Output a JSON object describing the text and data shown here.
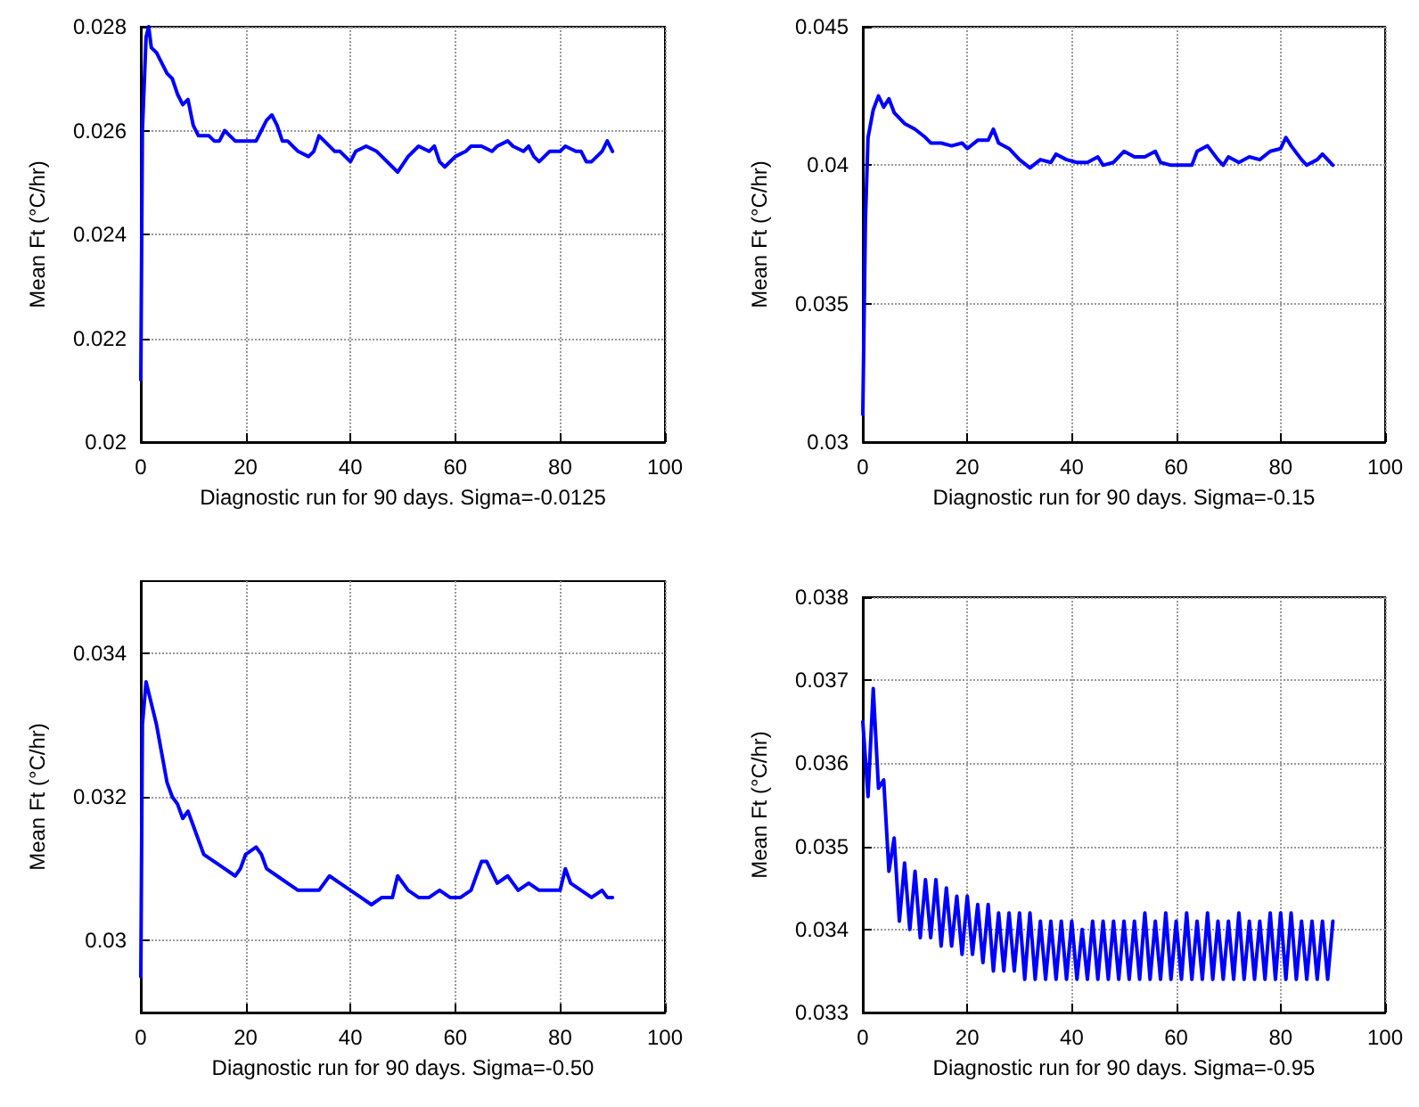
{
  "chart_data": [
    {
      "type": "line",
      "xlabel": "Diagnostic run for 90 days. Sigma=-0.0125",
      "ylabel": "Mean Ft (°C/hr)",
      "color": "#0000ff",
      "grid": true,
      "xlim": [
        0,
        100
      ],
      "xticks": [
        0,
        20,
        40,
        60,
        80,
        100
      ],
      "ylim": [
        0.02,
        0.028
      ],
      "yticks": [
        0.02,
        0.022,
        0.024,
        0.026,
        0.028
      ],
      "x": [
        0,
        0.3,
        1,
        1.5,
        2,
        3,
        5,
        6,
        7,
        8,
        9,
        10,
        11,
        13,
        14,
        15,
        16,
        17,
        18,
        20,
        22,
        23,
        24,
        25,
        26,
        27,
        28,
        30,
        32,
        33,
        34,
        35,
        37,
        38,
        40,
        41,
        43,
        45,
        46,
        48,
        49,
        51,
        53,
        55,
        56,
        57,
        58,
        60,
        62,
        63,
        65,
        67,
        68,
        70,
        71,
        73,
        74,
        75,
        76,
        77,
        78,
        80,
        81,
        83,
        84,
        85,
        86,
        87,
        88,
        89,
        90
      ],
      "values": [
        0.0212,
        0.026,
        0.0278,
        0.028,
        0.0276,
        0.0275,
        0.0271,
        0.027,
        0.0267,
        0.0265,
        0.0266,
        0.0261,
        0.0259,
        0.0259,
        0.0258,
        0.0258,
        0.026,
        0.0259,
        0.0258,
        0.0258,
        0.0258,
        0.026,
        0.0262,
        0.0263,
        0.0261,
        0.0258,
        0.0258,
        0.0256,
        0.0255,
        0.0256,
        0.0259,
        0.0258,
        0.0256,
        0.0256,
        0.0254,
        0.0256,
        0.0257,
        0.0256,
        0.0255,
        0.0253,
        0.0252,
        0.0255,
        0.0257,
        0.0256,
        0.0257,
        0.0254,
        0.0253,
        0.0255,
        0.0256,
        0.0257,
        0.0257,
        0.0256,
        0.0257,
        0.0258,
        0.0257,
        0.0256,
        0.0257,
        0.0255,
        0.0254,
        0.0255,
        0.0256,
        0.0256,
        0.0257,
        0.0256,
        0.0256,
        0.0254,
        0.0254,
        0.0255,
        0.0256,
        0.0258,
        0.0256
      ]
    },
    {
      "type": "line",
      "xlabel": "Diagnostic run for 90 days. Sigma=-0.15",
      "ylabel": "Mean Ft (°C/hr)",
      "color": "#0000ff",
      "grid": true,
      "xlim": [
        0,
        100
      ],
      "xticks": [
        0,
        20,
        40,
        60,
        80,
        100
      ],
      "ylim": [
        0.03,
        0.045
      ],
      "yticks": [
        0.03,
        0.035,
        0.04,
        0.045
      ],
      "x": [
        0,
        0.5,
        1,
        2,
        3,
        4,
        5,
        6,
        8,
        10,
        12,
        13,
        15,
        17,
        19,
        20,
        22,
        24,
        25,
        26,
        28,
        30,
        32,
        34,
        36,
        37,
        39,
        41,
        43,
        45,
        46,
        48,
        50,
        52,
        54,
        56,
        57,
        59,
        61,
        63,
        64,
        66,
        68,
        69,
        70,
        72,
        74,
        76,
        78,
        80,
        81,
        82,
        84,
        85,
        87,
        88,
        89,
        90
      ],
      "values": [
        0.031,
        0.038,
        0.041,
        0.042,
        0.0425,
        0.0421,
        0.0424,
        0.0419,
        0.0415,
        0.0413,
        0.041,
        0.0408,
        0.0408,
        0.0407,
        0.0408,
        0.0406,
        0.0409,
        0.0409,
        0.0413,
        0.0408,
        0.0406,
        0.0402,
        0.0399,
        0.0402,
        0.0401,
        0.0404,
        0.0402,
        0.0401,
        0.0401,
        0.0403,
        0.04,
        0.0401,
        0.0405,
        0.0403,
        0.0403,
        0.0405,
        0.0401,
        0.04,
        0.04,
        0.04,
        0.0405,
        0.0407,
        0.0402,
        0.04,
        0.0403,
        0.0401,
        0.0403,
        0.0402,
        0.0405,
        0.0406,
        0.041,
        0.0407,
        0.0402,
        0.04,
        0.0402,
        0.0404,
        0.0402,
        0.04
      ]
    },
    {
      "type": "line",
      "xlabel": "Diagnostic run for 90 days. Sigma=-0.50",
      "ylabel": "Mean Ft (°C/hr)",
      "color": "#0000ff",
      "grid": true,
      "xlim": [
        0,
        100
      ],
      "xticks": [
        0,
        20,
        40,
        60,
        80,
        100
      ],
      "ylim": [
        0.029,
        0.035
      ],
      "yticks": [
        0.03,
        0.032,
        0.034
      ],
      "x": [
        0,
        0.3,
        1,
        2,
        3,
        4,
        5,
        6,
        7,
        8,
        9,
        10,
        11,
        12,
        14,
        16,
        18,
        19,
        20,
        22,
        23,
        24,
        26,
        28,
        30,
        32,
        34,
        36,
        38,
        40,
        42,
        44,
        46,
        48,
        49,
        51,
        53,
        55,
        57,
        59,
        61,
        63,
        65,
        66,
        68,
        70,
        72,
        74,
        76,
        78,
        80,
        81,
        82,
        84,
        86,
        88,
        89,
        90
      ],
      "values": [
        0.0295,
        0.033,
        0.0336,
        0.0333,
        0.033,
        0.0326,
        0.0322,
        0.032,
        0.0319,
        0.0317,
        0.0318,
        0.0316,
        0.0314,
        0.0312,
        0.0311,
        0.031,
        0.0309,
        0.031,
        0.0312,
        0.0313,
        0.0312,
        0.031,
        0.0309,
        0.0308,
        0.0307,
        0.0307,
        0.0307,
        0.0309,
        0.0308,
        0.0307,
        0.0306,
        0.0305,
        0.0306,
        0.0306,
        0.0309,
        0.0307,
        0.0306,
        0.0306,
        0.0307,
        0.0306,
        0.0306,
        0.0307,
        0.0311,
        0.0311,
        0.0308,
        0.0309,
        0.0307,
        0.0308,
        0.0307,
        0.0307,
        0.0307,
        0.031,
        0.0308,
        0.0307,
        0.0306,
        0.0307,
        0.0306,
        0.0306
      ]
    },
    {
      "type": "line",
      "xlabel": "Diagnostic run for 90 days. Sigma=-0.95",
      "ylabel": "Mean Ft (°C/hr)",
      "color": "#0000ff",
      "grid": true,
      "xlim": [
        0,
        100
      ],
      "xticks": [
        0,
        20,
        40,
        60,
        80,
        100
      ],
      "ylim": [
        0.033,
        0.038
      ],
      "yticks": [
        0.033,
        0.034,
        0.035,
        0.036,
        0.037,
        0.038
      ],
      "x": [
        0,
        1,
        2,
        3,
        4,
        5,
        6,
        7,
        8,
        9,
        10,
        11,
        12,
        13,
        14,
        15,
        16,
        17,
        18,
        19,
        20,
        21,
        22,
        23,
        24,
        25,
        26,
        27,
        28,
        29,
        30,
        31,
        32,
        33,
        34,
        35,
        36,
        37,
        38,
        39,
        40,
        41,
        42,
        43,
        44,
        45,
        46,
        47,
        48,
        49,
        50,
        51,
        52,
        53,
        54,
        55,
        56,
        57,
        58,
        59,
        60,
        61,
        62,
        63,
        64,
        65,
        66,
        67,
        68,
        69,
        70,
        71,
        72,
        73,
        74,
        75,
        76,
        77,
        78,
        79,
        80,
        81,
        82,
        83,
        84,
        85,
        86,
        87,
        88,
        89,
        90
      ],
      "values": [
        0.0365,
        0.0356,
        0.0369,
        0.0357,
        0.0358,
        0.0347,
        0.0351,
        0.0341,
        0.0348,
        0.034,
        0.0347,
        0.0339,
        0.0346,
        0.0339,
        0.0346,
        0.0338,
        0.0345,
        0.0338,
        0.0344,
        0.0337,
        0.0344,
        0.0337,
        0.0343,
        0.0336,
        0.0343,
        0.0335,
        0.0342,
        0.0335,
        0.0342,
        0.0335,
        0.0342,
        0.0334,
        0.0342,
        0.0334,
        0.0341,
        0.0334,
        0.0341,
        0.0334,
        0.0341,
        0.0334,
        0.0341,
        0.0334,
        0.034,
        0.0334,
        0.0341,
        0.0334,
        0.0341,
        0.0334,
        0.0341,
        0.0334,
        0.0341,
        0.0334,
        0.0341,
        0.0334,
        0.0342,
        0.0334,
        0.0341,
        0.0334,
        0.0342,
        0.0334,
        0.0341,
        0.0334,
        0.0342,
        0.0334,
        0.0341,
        0.0334,
        0.0342,
        0.0334,
        0.0341,
        0.0334,
        0.0341,
        0.0334,
        0.0342,
        0.0334,
        0.0341,
        0.0334,
        0.0341,
        0.0334,
        0.0342,
        0.0334,
        0.0342,
        0.0334,
        0.0342,
        0.0334,
        0.0341,
        0.0334,
        0.0341,
        0.0334,
        0.0341,
        0.0334,
        0.0341
      ]
    }
  ]
}
